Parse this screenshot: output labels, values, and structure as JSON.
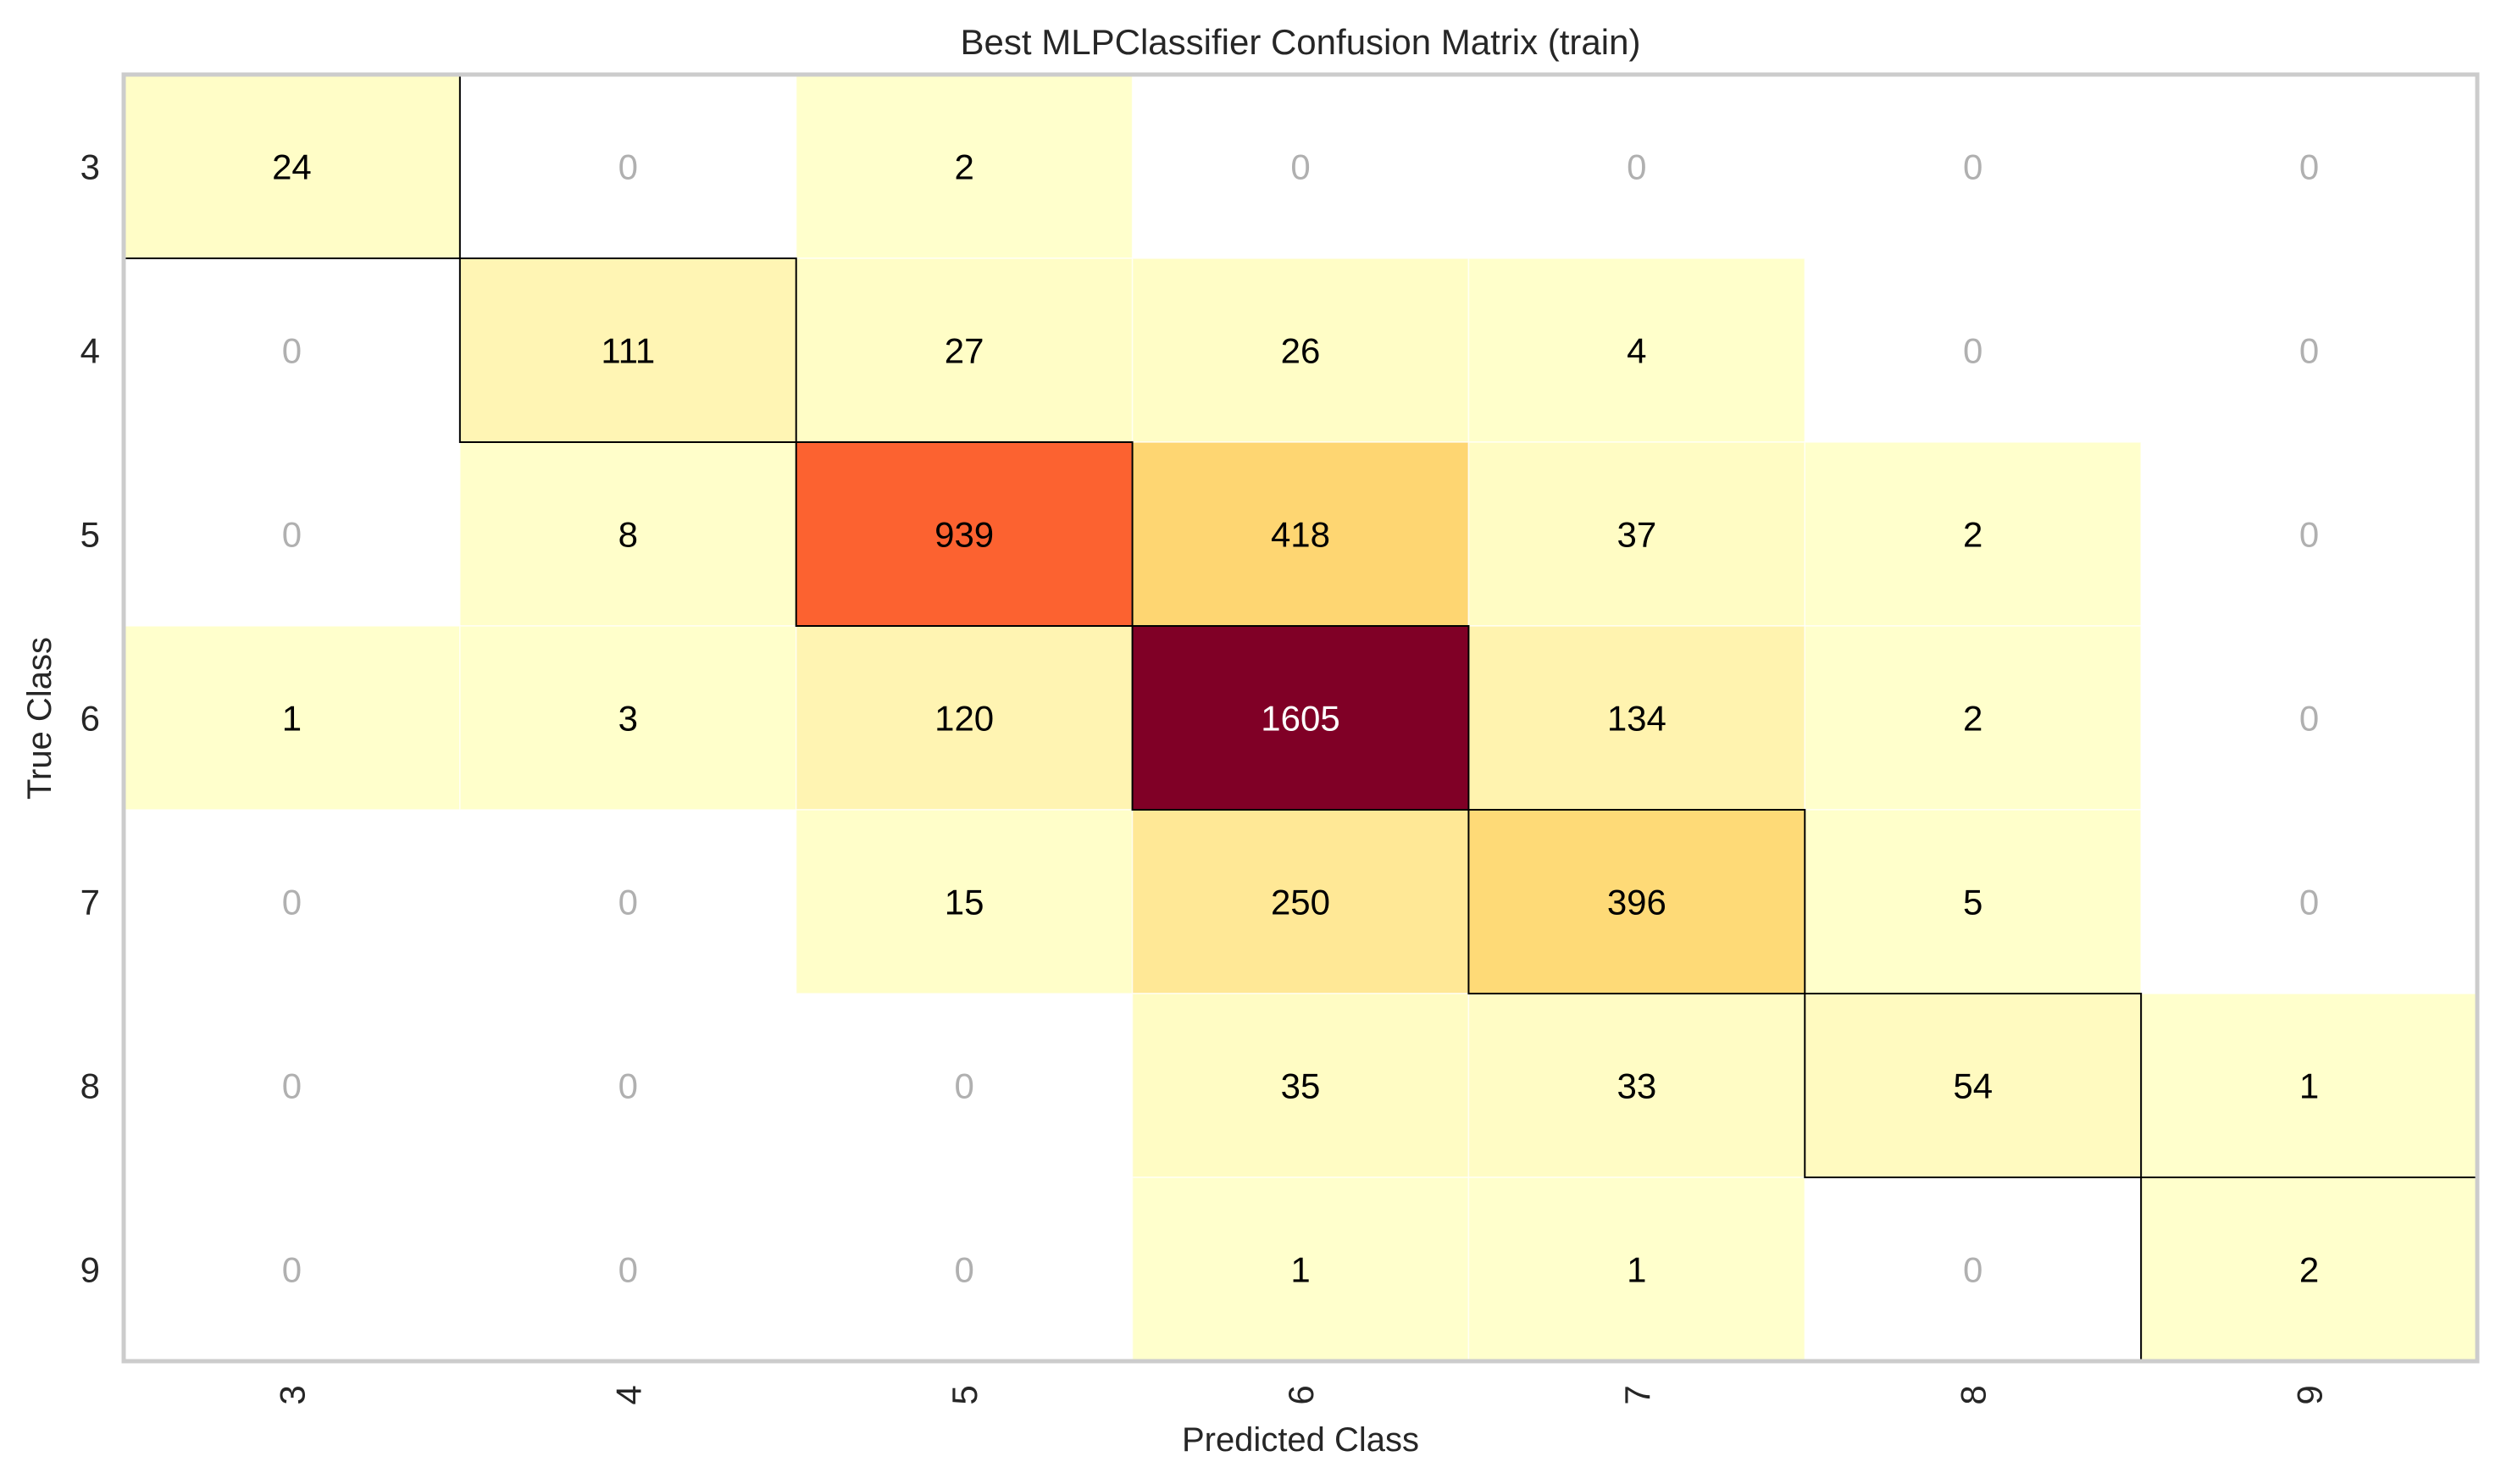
{
  "chart_data": {
    "type": "heatmap",
    "title": "Best MLPClassifier Confusion Matrix (train)",
    "xlabel": "Predicted Class",
    "ylabel": "True Class",
    "x_categories": [
      "3",
      "4",
      "5",
      "6",
      "7",
      "8",
      "9"
    ],
    "y_categories": [
      "3",
      "4",
      "5",
      "6",
      "7",
      "8",
      "9"
    ],
    "values": [
      [
        24,
        0,
        2,
        0,
        0,
        0,
        0
      ],
      [
        0,
        111,
        27,
        26,
        4,
        0,
        0
      ],
      [
        0,
        8,
        939,
        418,
        37,
        2,
        0
      ],
      [
        1,
        3,
        120,
        1605,
        134,
        2,
        0
      ],
      [
        0,
        0,
        15,
        250,
        396,
        5,
        0
      ],
      [
        0,
        0,
        0,
        35,
        33,
        54,
        1
      ],
      [
        0,
        0,
        0,
        1,
        1,
        0,
        2
      ]
    ],
    "colormap": "YlOrRd",
    "zero_label_color": "#b0b0b0",
    "label_color_dark": "#000000",
    "label_color_light": "#ffffff",
    "grid": false,
    "diagonal_outline": true,
    "x_tick_rotation": "vertical"
  }
}
